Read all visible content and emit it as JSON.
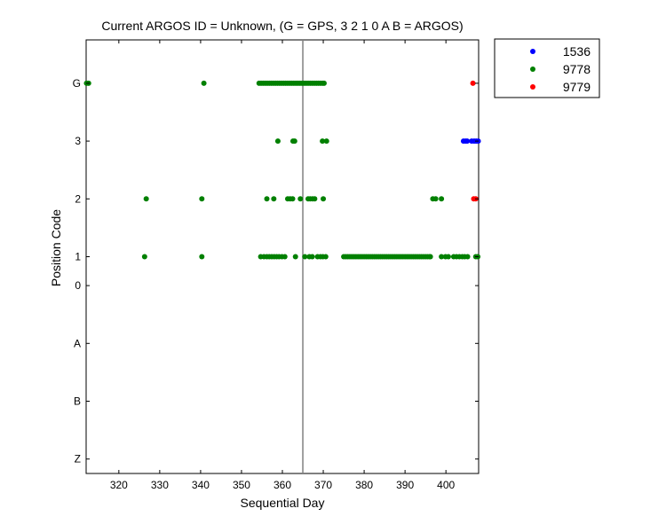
{
  "chart_data": {
    "type": "scatter",
    "title": "Current ARGOS ID = Unknown,  (G = GPS, 3 2 1 0 A B = ARGOS)",
    "xlabel": "Sequential Day",
    "ylabel": "Position Code",
    "xlim": [
      312,
      408
    ],
    "x_ticks": [
      320,
      330,
      340,
      350,
      360,
      370,
      380,
      390,
      400
    ],
    "y_categories": [
      "Z",
      "B",
      "A",
      "0",
      "1",
      "2",
      "3",
      "G"
    ],
    "y_values": {
      "Z": -3,
      "B": -2,
      "A": -1,
      "0": 0,
      "1": 0.5,
      "2": 1.5,
      "3": 2.5,
      "G": 3.5
    },
    "y_ticks": [
      "Z",
      "B",
      "A",
      "0",
      "1",
      "2",
      "3",
      "G"
    ],
    "ylim": [
      -3.25,
      4.25
    ],
    "grid": false,
    "legend_position": "outside-top-right",
    "reference_line": {
      "x": 365,
      "color": "#808080"
    },
    "series": [
      {
        "name": "1536",
        "color": "#0000ff",
        "points": [
          {
            "x": 404.3,
            "y": "3"
          },
          {
            "x": 404.8,
            "y": "3"
          },
          {
            "x": 405.2,
            "y": "3"
          },
          {
            "x": 406.3,
            "y": "3"
          },
          {
            "x": 406.9,
            "y": "3"
          },
          {
            "x": 407.4,
            "y": "3"
          },
          {
            "x": 407.9,
            "y": "3"
          }
        ]
      },
      {
        "name": "9778",
        "color": "#008000",
        "points": [
          {
            "x": 312.1,
            "y": "G"
          },
          {
            "x": 312.6,
            "y": "G"
          },
          {
            "x": 340.8,
            "y": "G"
          },
          {
            "x": 354.3,
            "y": "G"
          },
          {
            "x": 354.8,
            "y": "G"
          },
          {
            "x": 355.3,
            "y": "G"
          },
          {
            "x": 355.8,
            "y": "G"
          },
          {
            "x": 356.3,
            "y": "G"
          },
          {
            "x": 356.8,
            "y": "G"
          },
          {
            "x": 357.3,
            "y": "G"
          },
          {
            "x": 357.8,
            "y": "G"
          },
          {
            "x": 358.3,
            "y": "G"
          },
          {
            "x": 358.8,
            "y": "G"
          },
          {
            "x": 359.3,
            "y": "G"
          },
          {
            "x": 359.8,
            "y": "G"
          },
          {
            "x": 360.3,
            "y": "G"
          },
          {
            "x": 360.8,
            "y": "G"
          },
          {
            "x": 361.3,
            "y": "G"
          },
          {
            "x": 361.8,
            "y": "G"
          },
          {
            "x": 362.3,
            "y": "G"
          },
          {
            "x": 362.8,
            "y": "G"
          },
          {
            "x": 363.3,
            "y": "G"
          },
          {
            "x": 363.8,
            "y": "G"
          },
          {
            "x": 364.3,
            "y": "G"
          },
          {
            "x": 364.8,
            "y": "G"
          },
          {
            "x": 365.3,
            "y": "G"
          },
          {
            "x": 365.8,
            "y": "G"
          },
          {
            "x": 366.3,
            "y": "G"
          },
          {
            "x": 366.8,
            "y": "G"
          },
          {
            "x": 367.3,
            "y": "G"
          },
          {
            "x": 367.8,
            "y": "G"
          },
          {
            "x": 368.3,
            "y": "G"
          },
          {
            "x": 368.8,
            "y": "G"
          },
          {
            "x": 369.3,
            "y": "G"
          },
          {
            "x": 369.8,
            "y": "G"
          },
          {
            "x": 370.2,
            "y": "G"
          },
          {
            "x": 358.9,
            "y": "3"
          },
          {
            "x": 362.6,
            "y": "3"
          },
          {
            "x": 363.0,
            "y": "3"
          },
          {
            "x": 369.8,
            "y": "3"
          },
          {
            "x": 370.8,
            "y": "3"
          },
          {
            "x": 326.7,
            "y": "2"
          },
          {
            "x": 340.3,
            "y": "2"
          },
          {
            "x": 356.2,
            "y": "2"
          },
          {
            "x": 357.9,
            "y": "2"
          },
          {
            "x": 361.3,
            "y": "2"
          },
          {
            "x": 361.9,
            "y": "2"
          },
          {
            "x": 362.5,
            "y": "2"
          },
          {
            "x": 364.4,
            "y": "2"
          },
          {
            "x": 366.3,
            "y": "2"
          },
          {
            "x": 366.8,
            "y": "2"
          },
          {
            "x": 367.4,
            "y": "2"
          },
          {
            "x": 367.9,
            "y": "2"
          },
          {
            "x": 370.0,
            "y": "2"
          },
          {
            "x": 396.8,
            "y": "2"
          },
          {
            "x": 397.5,
            "y": "2"
          },
          {
            "x": 398.9,
            "y": "2"
          },
          {
            "x": 326.3,
            "y": "1"
          },
          {
            "x": 340.3,
            "y": "1"
          },
          {
            "x": 354.7,
            "y": "1"
          },
          {
            "x": 355.5,
            "y": "1"
          },
          {
            "x": 356.2,
            "y": "1"
          },
          {
            "x": 356.8,
            "y": "1"
          },
          {
            "x": 357.4,
            "y": "1"
          },
          {
            "x": 358.0,
            "y": "1"
          },
          {
            "x": 358.6,
            "y": "1"
          },
          {
            "x": 359.2,
            "y": "1"
          },
          {
            "x": 359.9,
            "y": "1"
          },
          {
            "x": 360.6,
            "y": "1"
          },
          {
            "x": 363.2,
            "y": "1"
          },
          {
            "x": 365.5,
            "y": "1"
          },
          {
            "x": 366.6,
            "y": "1"
          },
          {
            "x": 367.3,
            "y": "1"
          },
          {
            "x": 368.6,
            "y": "1"
          },
          {
            "x": 369.3,
            "y": "1"
          },
          {
            "x": 369.9,
            "y": "1"
          },
          {
            "x": 370.6,
            "y": "1"
          },
          {
            "x": 375.0,
            "y": "1"
          },
          {
            "x": 375.5,
            "y": "1"
          },
          {
            "x": 376.0,
            "y": "1"
          },
          {
            "x": 376.5,
            "y": "1"
          },
          {
            "x": 377.0,
            "y": "1"
          },
          {
            "x": 377.5,
            "y": "1"
          },
          {
            "x": 378.0,
            "y": "1"
          },
          {
            "x": 378.5,
            "y": "1"
          },
          {
            "x": 379.0,
            "y": "1"
          },
          {
            "x": 379.5,
            "y": "1"
          },
          {
            "x": 380.0,
            "y": "1"
          },
          {
            "x": 380.5,
            "y": "1"
          },
          {
            "x": 381.0,
            "y": "1"
          },
          {
            "x": 381.5,
            "y": "1"
          },
          {
            "x": 382.0,
            "y": "1"
          },
          {
            "x": 382.5,
            "y": "1"
          },
          {
            "x": 383.0,
            "y": "1"
          },
          {
            "x": 383.5,
            "y": "1"
          },
          {
            "x": 384.0,
            "y": "1"
          },
          {
            "x": 384.5,
            "y": "1"
          },
          {
            "x": 385.0,
            "y": "1"
          },
          {
            "x": 385.5,
            "y": "1"
          },
          {
            "x": 386.0,
            "y": "1"
          },
          {
            "x": 386.5,
            "y": "1"
          },
          {
            "x": 387.0,
            "y": "1"
          },
          {
            "x": 387.5,
            "y": "1"
          },
          {
            "x": 388.0,
            "y": "1"
          },
          {
            "x": 388.5,
            "y": "1"
          },
          {
            "x": 389.0,
            "y": "1"
          },
          {
            "x": 389.5,
            "y": "1"
          },
          {
            "x": 390.0,
            "y": "1"
          },
          {
            "x": 390.5,
            "y": "1"
          },
          {
            "x": 391.0,
            "y": "1"
          },
          {
            "x": 391.5,
            "y": "1"
          },
          {
            "x": 392.0,
            "y": "1"
          },
          {
            "x": 392.5,
            "y": "1"
          },
          {
            "x": 393.0,
            "y": "1"
          },
          {
            "x": 393.5,
            "y": "1"
          },
          {
            "x": 394.0,
            "y": "1"
          },
          {
            "x": 394.5,
            "y": "1"
          },
          {
            "x": 395.0,
            "y": "1"
          },
          {
            "x": 395.5,
            "y": "1"
          },
          {
            "x": 396.0,
            "y": "1"
          },
          {
            "x": 396.2,
            "y": "1"
          },
          {
            "x": 398.9,
            "y": "1"
          },
          {
            "x": 399.9,
            "y": "1"
          },
          {
            "x": 400.6,
            "y": "1"
          },
          {
            "x": 401.9,
            "y": "1"
          },
          {
            "x": 402.6,
            "y": "1"
          },
          {
            "x": 403.3,
            "y": "1"
          },
          {
            "x": 404.0,
            "y": "1"
          },
          {
            "x": 404.6,
            "y": "1"
          },
          {
            "x": 405.3,
            "y": "1"
          },
          {
            "x": 407.3,
            "y": "1"
          },
          {
            "x": 407.8,
            "y": "1"
          }
        ]
      },
      {
        "name": "9779",
        "color": "#ff0000",
        "points": [
          {
            "x": 406.6,
            "y": "G"
          },
          {
            "x": 406.8,
            "y": "2"
          },
          {
            "x": 407.3,
            "y": "2"
          }
        ]
      }
    ]
  }
}
